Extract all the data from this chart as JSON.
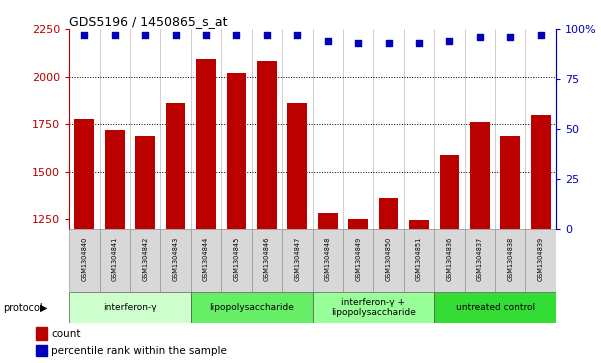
{
  "title": "GDS5196 / 1450865_s_at",
  "samples": [
    "GSM1304840",
    "GSM1304841",
    "GSM1304842",
    "GSM1304843",
    "GSM1304844",
    "GSM1304845",
    "GSM1304846",
    "GSM1304847",
    "GSM1304848",
    "GSM1304849",
    "GSM1304850",
    "GSM1304851",
    "GSM1304836",
    "GSM1304837",
    "GSM1304838",
    "GSM1304839"
  ],
  "counts": [
    1775,
    1720,
    1685,
    1860,
    2090,
    2020,
    2080,
    1860,
    1280,
    1250,
    1360,
    1245,
    1590,
    1760,
    1685,
    1800
  ],
  "percentiles": [
    97,
    97,
    97,
    97,
    97,
    97,
    97,
    97,
    94,
    93,
    93,
    93,
    94,
    96,
    96,
    97
  ],
  "groups": [
    {
      "label": "interferon-γ",
      "start": 0,
      "end": 4,
      "color": "#ccffcc"
    },
    {
      "label": "lipopolysaccharide",
      "start": 4,
      "end": 8,
      "color": "#66ee66"
    },
    {
      "label": "interferon-γ +\nlipopolysaccharide",
      "start": 8,
      "end": 12,
      "color": "#99ff99"
    },
    {
      "label": "untreated control",
      "start": 12,
      "end": 16,
      "color": "#33dd33"
    }
  ],
  "ylim_left": [
    1200,
    2250
  ],
  "ylim_right": [
    0,
    100
  ],
  "yticks_left": [
    1250,
    1500,
    1750,
    2000,
    2250
  ],
  "yticks_right": [
    0,
    25,
    50,
    75,
    100
  ],
  "bar_color": "#bb0000",
  "dot_color": "#0000bb",
  "background_color": "#ffffff",
  "protocol_label": "protocol"
}
